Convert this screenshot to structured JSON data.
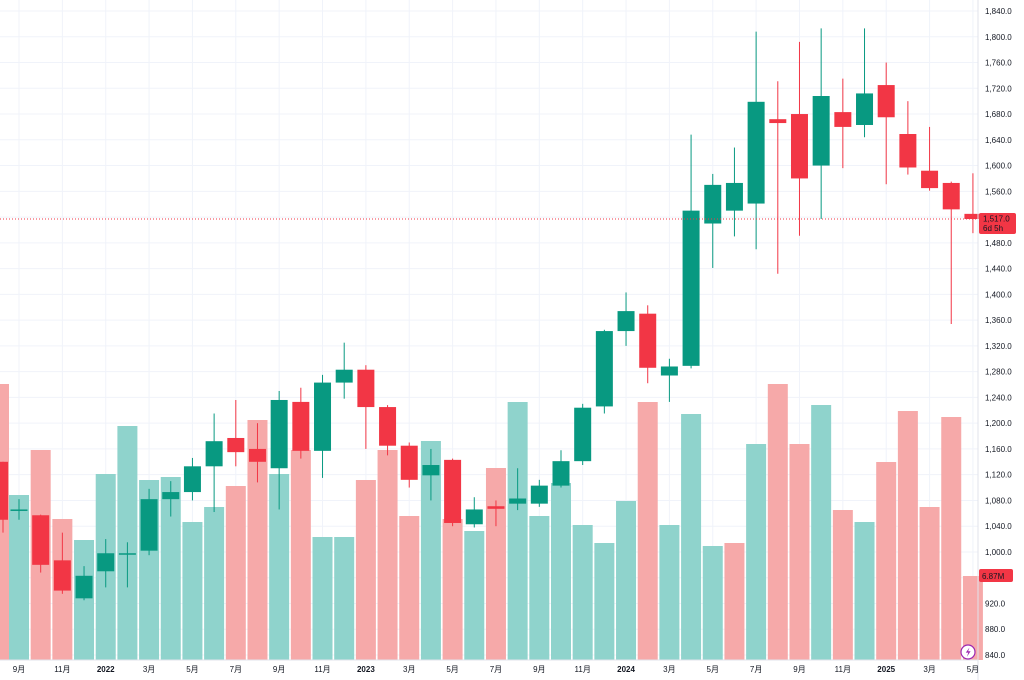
{
  "chart_data": {
    "type": "candlestick",
    "interval": "monthly",
    "colors": {
      "up": "#089981",
      "down": "#f23645",
      "volume_up": "#8fd3cc",
      "volume_down": "#f6a9a9",
      "grid": "#f0f3fa",
      "text": "#131722",
      "price_line": "#f23645"
    },
    "ylim": [
      840,
      1840
    ],
    "y_ticks": [
      "1,840.0",
      "1,800.0",
      "1,760.0",
      "1,720.0",
      "1,680.0",
      "1,640.0",
      "1,600.0",
      "1,560.0",
      "1,520.0",
      "1,480.0",
      "1,440.0",
      "1,400.0",
      "1,360.0",
      "1,320.0",
      "1,280.0",
      "1,240.0",
      "1,200.0",
      "1,160.0",
      "1,120.0",
      "1,080.0",
      "1,040.0",
      "1,000.0",
      "960.0",
      "920.0",
      "880.0",
      "840.0"
    ],
    "x_labels": [
      {
        "text": "9月",
        "index": 0,
        "bold": false
      },
      {
        "text": "11月",
        "index": 2,
        "bold": false
      },
      {
        "text": "2022",
        "index": 4,
        "bold": true
      },
      {
        "text": "3月",
        "index": 6,
        "bold": false
      },
      {
        "text": "5月",
        "index": 8,
        "bold": false
      },
      {
        "text": "7月",
        "index": 10,
        "bold": false
      },
      {
        "text": "9月",
        "index": 12,
        "bold": false
      },
      {
        "text": "11月",
        "index": 14,
        "bold": false
      },
      {
        "text": "2023",
        "index": 16,
        "bold": true
      },
      {
        "text": "3月",
        "index": 18,
        "bold": false
      },
      {
        "text": "5月",
        "index": 20,
        "bold": false
      },
      {
        "text": "7月",
        "index": 22,
        "bold": false
      },
      {
        "text": "9月",
        "index": 24,
        "bold": false
      },
      {
        "text": "11月",
        "index": 26,
        "bold": false
      },
      {
        "text": "2024",
        "index": 28,
        "bold": true
      },
      {
        "text": "3月",
        "index": 30,
        "bold": false
      },
      {
        "text": "5月",
        "index": 32,
        "bold": false
      },
      {
        "text": "7月",
        "index": 34,
        "bold": false
      },
      {
        "text": "9月",
        "index": 36,
        "bold": false
      },
      {
        "text": "11月",
        "index": 38,
        "bold": false
      },
      {
        "text": "2025",
        "index": 40,
        "bold": true
      },
      {
        "text": "3月",
        "index": 42,
        "bold": false
      },
      {
        "text": "5月",
        "index": 44,
        "bold": false
      }
    ],
    "candles": [
      {
        "o": 1066,
        "h": 1082,
        "l": 1050,
        "c": 1066
      },
      {
        "o": 1057,
        "h": 1058,
        "l": 968,
        "c": 980
      },
      {
        "o": 987,
        "h": 1030,
        "l": 935,
        "c": 940
      },
      {
        "o": 928,
        "h": 978,
        "l": 925,
        "c": 963
      },
      {
        "o": 970,
        "h": 1020,
        "l": 945,
        "c": 998
      },
      {
        "o": 998,
        "h": 1015,
        "l": 945,
        "c": 998
      },
      {
        "o": 1002,
        "h": 1098,
        "l": 995,
        "c": 1082
      },
      {
        "o": 1082,
        "h": 1110,
        "l": 1055,
        "c": 1093
      },
      {
        "o": 1093,
        "h": 1146,
        "l": 1080,
        "c": 1133
      },
      {
        "o": 1133,
        "h": 1215,
        "l": 1062,
        "c": 1172
      },
      {
        "o": 1177,
        "h": 1236,
        "l": 1133,
        "c": 1155
      },
      {
        "o": 1160,
        "h": 1200,
        "l": 1108,
        "c": 1140
      },
      {
        "o": 1130,
        "h": 1250,
        "l": 1066,
        "c": 1236
      },
      {
        "o": 1233,
        "h": 1255,
        "l": 1145,
        "c": 1157
      },
      {
        "o": 1157,
        "h": 1275,
        "l": 1115,
        "c": 1263
      },
      {
        "o": 1263,
        "h": 1325,
        "l": 1238,
        "c": 1283
      },
      {
        "o": 1283,
        "h": 1290,
        "l": 1160,
        "c": 1225
      },
      {
        "o": 1225,
        "h": 1228,
        "l": 1150,
        "c": 1165
      },
      {
        "o": 1165,
        "h": 1170,
        "l": 1100,
        "c": 1112
      },
      {
        "o": 1119,
        "h": 1160,
        "l": 1080,
        "c": 1135
      },
      {
        "o": 1143,
        "h": 1145,
        "l": 1040,
        "c": 1045
      },
      {
        "o": 1043,
        "h": 1085,
        "l": 1038,
        "c": 1066
      },
      {
        "o": 1071,
        "h": 1080,
        "l": 1040,
        "c": 1067
      },
      {
        "o": 1075,
        "h": 1130,
        "l": 1065,
        "c": 1083
      },
      {
        "o": 1075,
        "h": 1112,
        "l": 1070,
        "c": 1103
      },
      {
        "o": 1103,
        "h": 1158,
        "l": 1100,
        "c": 1141
      },
      {
        "o": 1141,
        "h": 1230,
        "l": 1135,
        "c": 1224
      },
      {
        "o": 1226,
        "h": 1345,
        "l": 1215,
        "c": 1343
      },
      {
        "o": 1343,
        "h": 1403,
        "l": 1320,
        "c": 1374
      },
      {
        "o": 1370,
        "h": 1383,
        "l": 1262,
        "c": 1286
      },
      {
        "o": 1274,
        "h": 1300,
        "l": 1233,
        "c": 1288
      },
      {
        "o": 1289,
        "h": 1648,
        "l": 1285,
        "c": 1530
      },
      {
        "o": 1510,
        "h": 1587,
        "l": 1441,
        "c": 1570
      },
      {
        "o": 1530,
        "h": 1628,
        "l": 1490,
        "c": 1573
      },
      {
        "o": 1541,
        "h": 1808,
        "l": 1470,
        "c": 1699
      },
      {
        "o": 1672,
        "h": 1731,
        "l": 1432,
        "c": 1666
      },
      {
        "o": 1680,
        "h": 1792,
        "l": 1491,
        "c": 1580
      },
      {
        "o": 1600,
        "h": 1813,
        "l": 1517,
        "c": 1708
      },
      {
        "o": 1683,
        "h": 1735,
        "l": 1596,
        "c": 1660
      },
      {
        "o": 1663,
        "h": 1813,
        "l": 1644,
        "c": 1712
      },
      {
        "o": 1725,
        "h": 1760,
        "l": 1571,
        "c": 1675
      },
      {
        "o": 1649,
        "h": 1700,
        "l": 1586,
        "c": 1597
      },
      {
        "o": 1592,
        "h": 1660,
        "l": 1561,
        "c": 1565
      },
      {
        "o": 1573,
        "h": 1575,
        "l": 1354,
        "c": 1532
      },
      {
        "o": 1525,
        "h": 1588,
        "l": 1495,
        "c": 1517
      }
    ],
    "volume_ylim": [
      0,
      1
    ],
    "volume": [
      {
        "v": 0.55,
        "dir": "up"
      },
      {
        "v": 0.7,
        "dir": "down"
      },
      {
        "v": 0.47,
        "dir": "down"
      },
      {
        "v": 0.4,
        "dir": "up"
      },
      {
        "v": 0.62,
        "dir": "up"
      },
      {
        "v": 0.78,
        "dir": "up"
      },
      {
        "v": 0.6,
        "dir": "up"
      },
      {
        "v": 0.61,
        "dir": "up"
      },
      {
        "v": 0.46,
        "dir": "up"
      },
      {
        "v": 0.51,
        "dir": "up"
      },
      {
        "v": 0.58,
        "dir": "down"
      },
      {
        "v": 0.8,
        "dir": "down"
      },
      {
        "v": 0.62,
        "dir": "up"
      },
      {
        "v": 0.7,
        "dir": "down"
      },
      {
        "v": 0.41,
        "dir": "up"
      },
      {
        "v": 0.41,
        "dir": "up"
      },
      {
        "v": 0.6,
        "dir": "down"
      },
      {
        "v": 0.7,
        "dir": "down"
      },
      {
        "v": 0.48,
        "dir": "down"
      },
      {
        "v": 0.73,
        "dir": "up"
      },
      {
        "v": 0.47,
        "dir": "down"
      },
      {
        "v": 0.43,
        "dir": "up"
      },
      {
        "v": 0.64,
        "dir": "down"
      },
      {
        "v": 0.86,
        "dir": "up"
      },
      {
        "v": 0.48,
        "dir": "up"
      },
      {
        "v": 0.59,
        "dir": "up"
      },
      {
        "v": 0.45,
        "dir": "up"
      },
      {
        "v": 0.39,
        "dir": "up"
      },
      {
        "v": 0.53,
        "dir": "up"
      },
      {
        "v": 0.86,
        "dir": "down"
      },
      {
        "v": 0.45,
        "dir": "up"
      },
      {
        "v": 0.82,
        "dir": "up"
      },
      {
        "v": 0.38,
        "dir": "up"
      },
      {
        "v": 0.39,
        "dir": "down"
      },
      {
        "v": 0.72,
        "dir": "up"
      },
      {
        "v": 0.92,
        "dir": "down"
      },
      {
        "v": 0.72,
        "dir": "down"
      },
      {
        "v": 0.85,
        "dir": "up"
      },
      {
        "v": 0.5,
        "dir": "down"
      },
      {
        "v": 0.46,
        "dir": "up"
      },
      {
        "v": 0.66,
        "dir": "down"
      },
      {
        "v": 0.83,
        "dir": "down"
      },
      {
        "v": 0.51,
        "dir": "down"
      },
      {
        "v": 0.81,
        "dir": "down"
      },
      {
        "v": 0.28,
        "dir": "down"
      }
    ],
    "partial_first": {
      "price": {
        "o": 1140,
        "h": 1140,
        "l": 1030,
        "c": 1050
      },
      "volume": 0.92,
      "dir": "down"
    },
    "last_price": {
      "value": 1517,
      "label": "1,517.0",
      "countdown": "6d 5h"
    },
    "volume_badge": "6.87M"
  }
}
